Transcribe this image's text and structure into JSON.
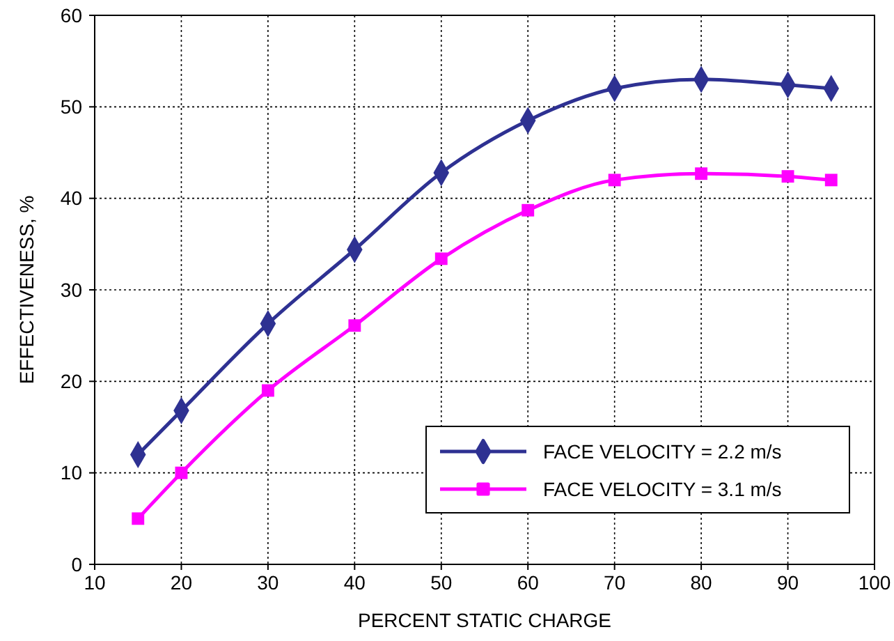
{
  "chart_data": {
    "type": "line",
    "xlabel": "PERCENT STATIC CHARGE",
    "ylabel": "EFFECTIVENESS, %",
    "x": [
      15,
      20,
      30,
      40,
      50,
      60,
      70,
      80,
      90,
      95
    ],
    "series": [
      {
        "name": "FACE VELOCITY = 2.2 m/s",
        "color": "#2e3192",
        "marker": "diamond",
        "values": [
          12,
          16.8,
          26.3,
          34.4,
          42.8,
          48.5,
          52,
          53,
          52.4,
          52
        ]
      },
      {
        "name": "FACE VELOCITY = 3.1 m/s",
        "color": "#ff00ff",
        "marker": "square",
        "values": [
          5,
          10,
          19,
          26.1,
          33.4,
          38.7,
          42,
          42.7,
          42.4,
          42
        ]
      }
    ],
    "xlim": [
      10,
      100
    ],
    "xticks": [
      10,
      20,
      30,
      40,
      50,
      60,
      70,
      80,
      90,
      100
    ],
    "ylim": [
      0,
      60
    ],
    "yticks": [
      0,
      10,
      20,
      30,
      40,
      50,
      60
    ],
    "grid": true,
    "legend": "bottom right",
    "line_style": "solid"
  }
}
